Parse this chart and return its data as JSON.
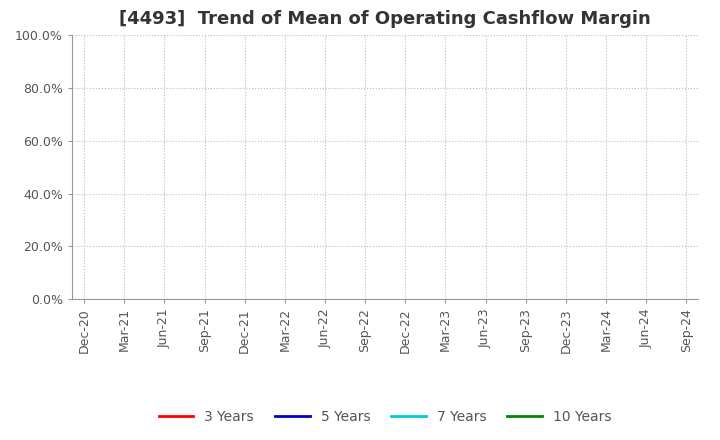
{
  "title": "[4493]  Trend of Mean of Operating Cashflow Margin",
  "title_fontsize": 13,
  "title_color": "#333333",
  "background_color": "#ffffff",
  "plot_bg_color": "#ffffff",
  "ylim": [
    0.0,
    1.0
  ],
  "yticks": [
    0.0,
    0.2,
    0.4,
    0.6,
    0.8,
    1.0
  ],
  "ytick_labels": [
    "0.0%",
    "20.0%",
    "40.0%",
    "60.0%",
    "80.0%",
    "100.0%"
  ],
  "xtick_labels": [
    "Dec-20",
    "Mar-21",
    "Jun-21",
    "Sep-21",
    "Dec-21",
    "Mar-22",
    "Jun-22",
    "Sep-22",
    "Dec-22",
    "Mar-23",
    "Jun-23",
    "Sep-23",
    "Dec-23",
    "Mar-24",
    "Jun-24",
    "Sep-24"
  ],
  "grid_color": "#bbbbbb",
  "legend_entries": [
    {
      "label": "3 Years",
      "color": "#ff0000",
      "linewidth": 2
    },
    {
      "label": "5 Years",
      "color": "#0000cc",
      "linewidth": 2
    },
    {
      "label": "7 Years",
      "color": "#00cccc",
      "linewidth": 2
    },
    {
      "label": "10 Years",
      "color": "#008800",
      "linewidth": 2
    }
  ],
  "spine_color": "#999999",
  "tick_label_fontsize": 9,
  "legend_fontsize": 10,
  "tick_color": "#555555"
}
